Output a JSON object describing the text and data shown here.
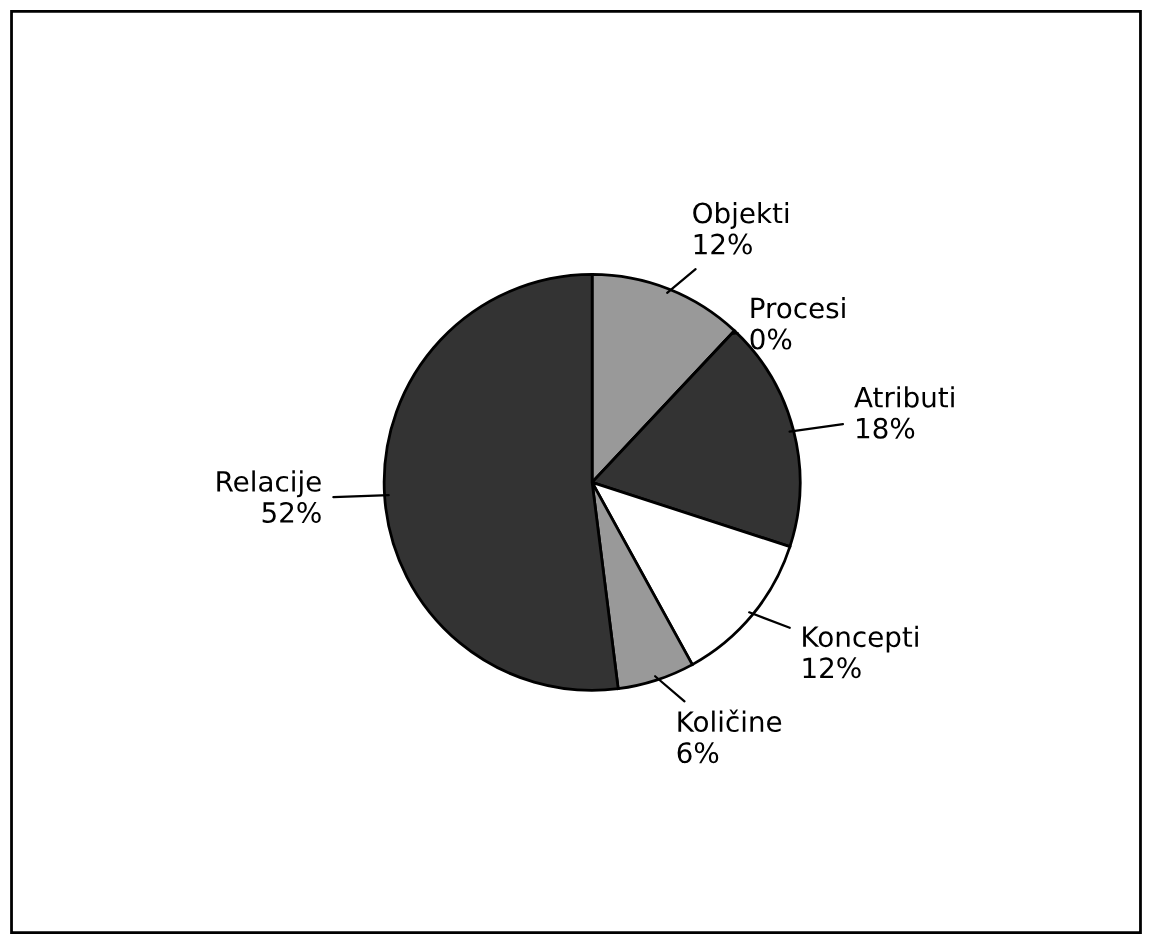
{
  "chart_data": {
    "type": "pie",
    "categories": [
      "Objekti",
      "Procesi",
      "Atributi",
      "Koncepti",
      "Količine",
      "Relacije"
    ],
    "values": [
      12,
      0,
      18,
      12,
      6,
      52
    ],
    "value_labels": [
      "12%",
      "0%",
      "18%",
      "12%",
      "6%",
      "52%"
    ],
    "colors": [
      "#999999",
      "#ffffff",
      "#333333",
      "#ffffff",
      "#999999",
      "#333333"
    ],
    "legend": false
  }
}
